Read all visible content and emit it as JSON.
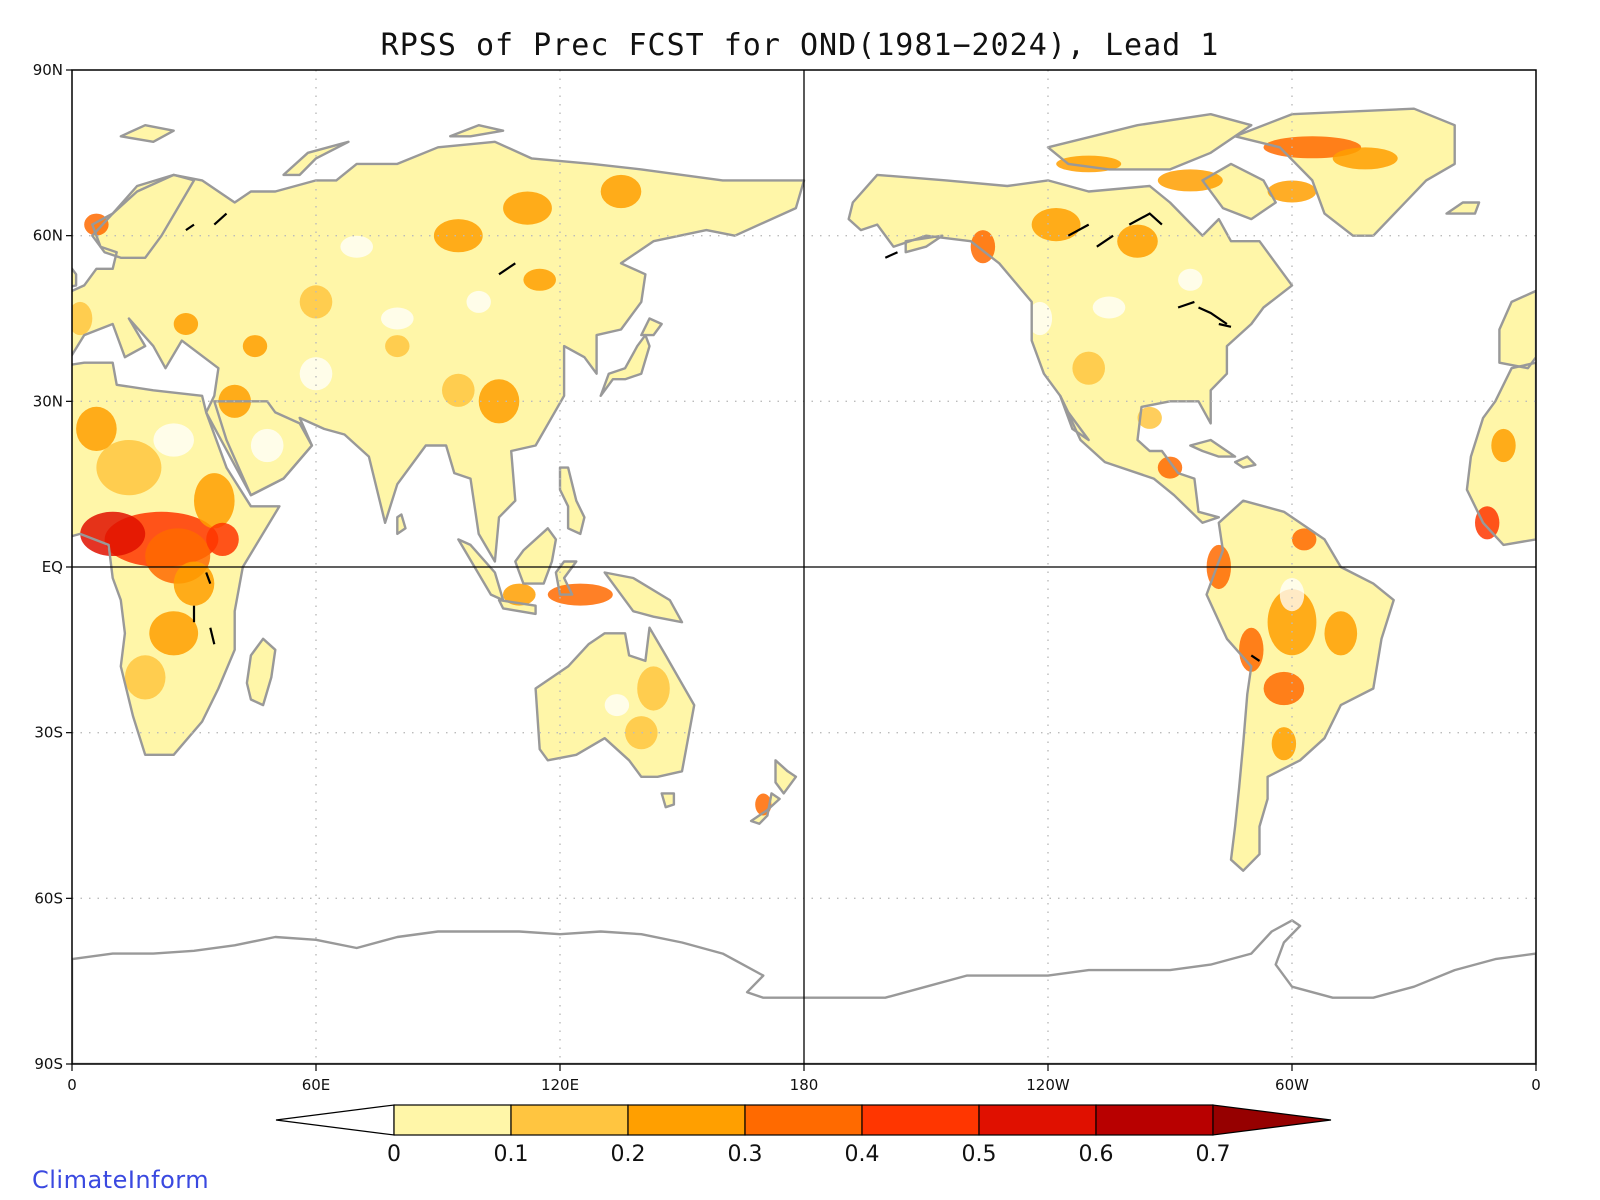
{
  "title": "RPSS of Prec FCST for OND(1981−2024), Lead 1",
  "credit": "ClimateInform",
  "lat_ticks": [
    "90N",
    "60N",
    "30N",
    "EQ",
    "30S",
    "60S",
    "90S"
  ],
  "lon_ticks": [
    "0",
    "60E",
    "120E",
    "180",
    "120W",
    "60W",
    "0"
  ],
  "colorbar": {
    "labels": [
      "0",
      "0.1",
      "0.2",
      "0.3",
      "0.4",
      "0.5",
      "0.6",
      "0.7"
    ],
    "colors": [
      "#ffffff",
      "#fff6a8",
      "#ffc540",
      "#ff9f00",
      "#ff6a00",
      "#ff3600",
      "#e01000",
      "#b80000",
      "#960000"
    ]
  },
  "colors": {
    "coast": "#999999",
    "lake": "#000000",
    "grid": "#bbbbbb"
  }
}
